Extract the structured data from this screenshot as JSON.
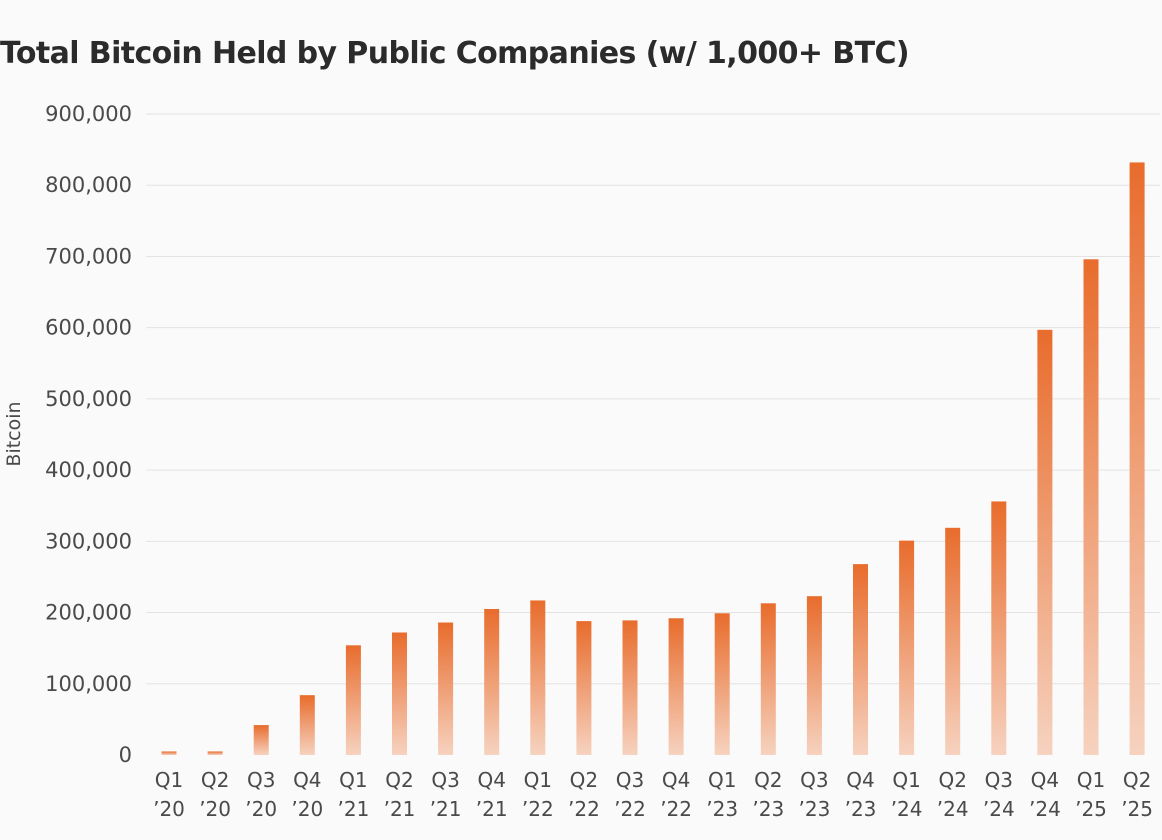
{
  "colors": {
    "bar_top": "#e86c2c",
    "bar_bottom": "#f6d2bf",
    "grid": "#e3e3e3",
    "text": "#4a4a4a",
    "title": "#2b2b2b",
    "background": "#fafafa"
  },
  "chart_data": {
    "type": "bar",
    "title": "Total Bitcoin Held by Public Companies (w/ 1,000+ BTC)",
    "xlabel": "",
    "ylabel": "Bitcoin",
    "ylim": [
      0,
      900000
    ],
    "yticks": [
      0,
      100000,
      200000,
      300000,
      400000,
      500000,
      600000,
      700000,
      800000,
      900000
    ],
    "ytick_labels": [
      "0",
      "100,000",
      "200,000",
      "300,000",
      "400,000",
      "500,000",
      "600,000",
      "700,000",
      "800,000",
      "900,000"
    ],
    "grid": true,
    "categories": [
      {
        "quarter": "Q1",
        "year": "’20"
      },
      {
        "quarter": "Q2",
        "year": "’20"
      },
      {
        "quarter": "Q3",
        "year": "’20"
      },
      {
        "quarter": "Q4",
        "year": "’20"
      },
      {
        "quarter": "Q1",
        "year": "’21"
      },
      {
        "quarter": "Q2",
        "year": "’21"
      },
      {
        "quarter": "Q3",
        "year": "’21"
      },
      {
        "quarter": "Q4",
        "year": "’21"
      },
      {
        "quarter": "Q1",
        "year": "’22"
      },
      {
        "quarter": "Q2",
        "year": "’22"
      },
      {
        "quarter": "Q3",
        "year": "’22"
      },
      {
        "quarter": "Q4",
        "year": "’22"
      },
      {
        "quarter": "Q1",
        "year": "’23"
      },
      {
        "quarter": "Q2",
        "year": "’23"
      },
      {
        "quarter": "Q3",
        "year": "’23"
      },
      {
        "quarter": "Q4",
        "year": "’23"
      },
      {
        "quarter": "Q1",
        "year": "’24"
      },
      {
        "quarter": "Q2",
        "year": "’24"
      },
      {
        "quarter": "Q3",
        "year": "’24"
      },
      {
        "quarter": "Q4",
        "year": "’24"
      },
      {
        "quarter": "Q1",
        "year": "’25"
      },
      {
        "quarter": "Q2",
        "year": "’25"
      }
    ],
    "values": [
      5000,
      5000,
      42000,
      84000,
      154000,
      172000,
      186000,
      205000,
      217000,
      188000,
      189000,
      192000,
      199000,
      213000,
      223000,
      268000,
      301000,
      319000,
      356000,
      597000,
      696000,
      832000
    ]
  }
}
